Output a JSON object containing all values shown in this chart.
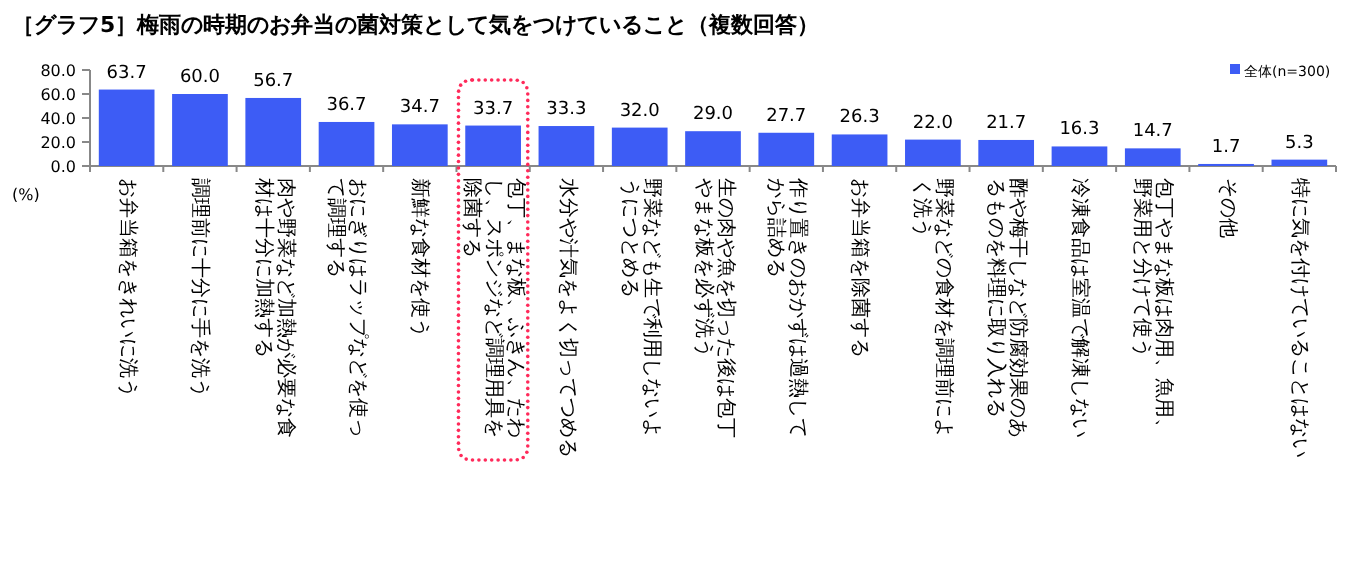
{
  "chart_data": {
    "type": "bar",
    "title": "［グラフ5］梅雨の時期のお弁当の菌対策として気をつけていること（複数回答）",
    "ylabel": "(%)",
    "categories": [
      "お弁当箱をきれいに洗う",
      "調理前に十分に手を洗う",
      "肉や野菜など加熱が必要な食材は十分に加熱する",
      "おにぎりはラップなどを使って調理する",
      "新鮮な食材を使う",
      "包丁、まな板、ふきん、たわし、スポンジなど調理用具を除菌する",
      "水分や汁気をよく切ってつめる",
      "野菜なども生で利用しないようにつとめる",
      "生の肉や魚を切った後は包丁やまな板を必ず洗う",
      "作り置きのおかずは過熱してから詰める",
      "お弁当箱を除菌する",
      "野菜などの食材を調理前によく洗う",
      "酢や梅干しなど防腐効果のあるものを料理に取り入れる",
      "冷凍食品は室温で解凍しない",
      "包丁やまな板は肉用、魚用、野菜用と分けて使う",
      "その他",
      "特に気を付けていることはない"
    ],
    "series": [
      {
        "name": "全体(n=300)",
        "color": "#3d5cf5",
        "values": [
          63.7,
          60.0,
          56.7,
          36.7,
          34.7,
          33.7,
          33.3,
          32.0,
          29.0,
          27.7,
          26.3,
          22.0,
          21.7,
          16.3,
          14.7,
          1.7,
          5.3
        ]
      }
    ],
    "value_labels": [
      "63.7",
      "60.0",
      "56.7",
      "36.7",
      "34.7",
      "33.7",
      "33.3",
      "32.0",
      "29.0",
      "27.7",
      "26.3",
      "22.0",
      "21.7",
      "16.3",
      "14.7",
      "1.7",
      "5.3"
    ],
    "ylim": [
      0,
      80
    ],
    "yticks": [
      {
        "value": 0,
        "label": "0.0"
      },
      {
        "value": 20,
        "label": "20.0"
      },
      {
        "value": 40,
        "label": "40.0"
      },
      {
        "value": 60,
        "label": "60.0"
      },
      {
        "value": 80,
        "label": "80.0"
      }
    ],
    "legend": "top right"
  }
}
